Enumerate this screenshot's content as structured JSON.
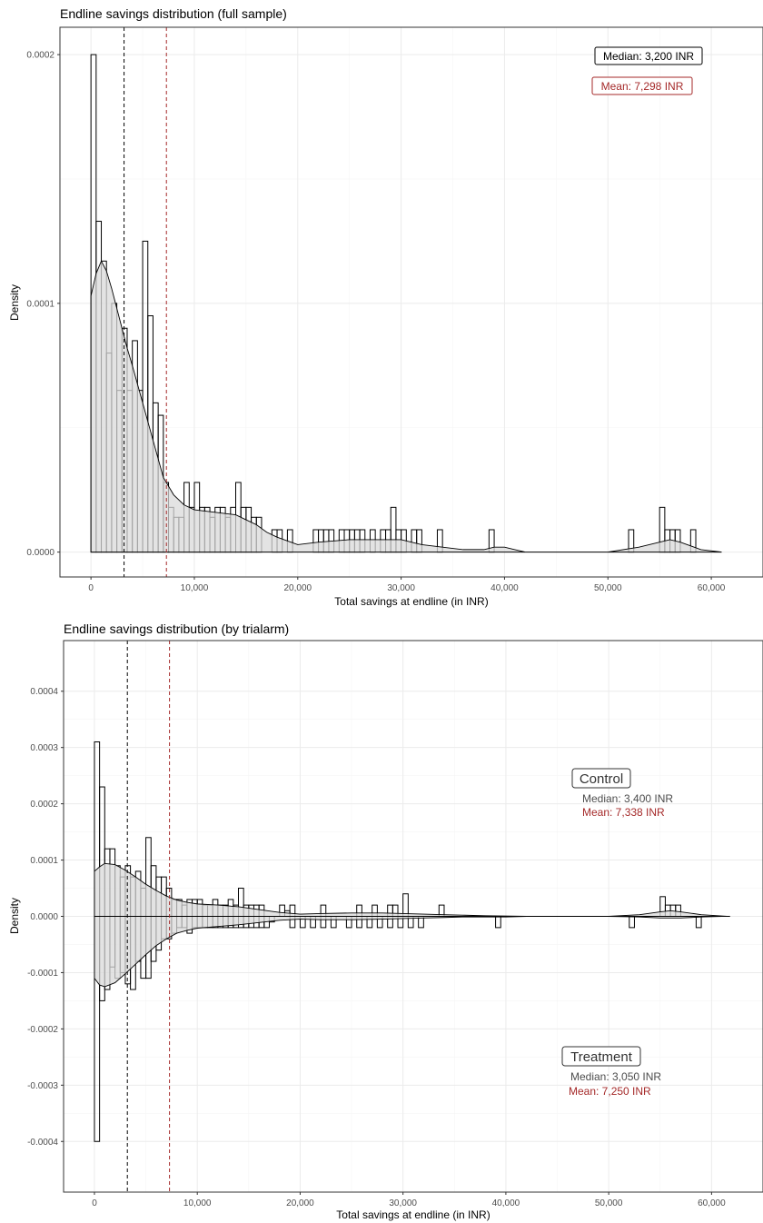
{
  "colors": {
    "median": "#000000",
    "mean": "#a52a2a",
    "annotation_text": "#4d4d4d",
    "fill": "#d9d9d9"
  },
  "chart_data": [
    {
      "type": "bar",
      "title": "Endline savings distribution (full sample)",
      "xlabel": "Total savings at endline (in INR)",
      "ylabel": "Density",
      "xlim": [
        -3000,
        65000
      ],
      "ylim": [
        -1e-05,
        0.000211
      ],
      "x_ticks": [
        0,
        10000,
        20000,
        30000,
        40000,
        50000,
        60000
      ],
      "x_tick_labels": [
        "0",
        "10,000",
        "20,000",
        "30,000",
        "40,000",
        "50,000",
        "60,000"
      ],
      "y_ticks": [
        0,
        0.0001,
        0.0002
      ],
      "y_tick_labels": [
        "0.0000",
        "0.0001",
        "0.0002"
      ],
      "bin_width": 500,
      "bars": {
        "x_start": [
          0,
          500,
          1000,
          1500,
          2000,
          2500,
          3000,
          3500,
          4000,
          4500,
          5000,
          5500,
          6000,
          6500,
          7000,
          7500,
          8000,
          8500,
          9000,
          9500,
          10000,
          10500,
          11000,
          11500,
          12000,
          12500,
          13000,
          13500,
          14000,
          14500,
          15000,
          15500,
          16000,
          17500,
          18000,
          19000,
          21500,
          22000,
          22500,
          23000,
          24000,
          24500,
          25000,
          25500,
          26000,
          27000,
          28000,
          28500,
          29000,
          29500,
          30000,
          31000,
          31500,
          33500,
          38500,
          52000,
          55000,
          55500,
          56000,
          56500,
          58000
        ],
        "density": [
          0.0002,
          0.000133,
          0.000117,
          8e-05,
          0.0001,
          6.5e-05,
          9e-05,
          6.5e-05,
          8.5e-05,
          6.5e-05,
          0.000125,
          9.5e-05,
          6e-05,
          5.5e-05,
          2.8e-05,
          1.8e-05,
          1.4e-05,
          1.4e-05,
          2.8e-05,
          1.8e-05,
          2.8e-05,
          1.8e-05,
          1.8e-05,
          1.4e-05,
          1.8e-05,
          1.8e-05,
          1.4e-05,
          1.8e-05,
          2.8e-05,
          1.8e-05,
          1.8e-05,
          1.4e-05,
          1.4e-05,
          9e-06,
          9e-06,
          9e-06,
          9e-06,
          9e-06,
          9e-06,
          9e-06,
          9e-06,
          9e-06,
          9e-06,
          9e-06,
          9e-06,
          9e-06,
          9e-06,
          9e-06,
          1.8e-05,
          9e-06,
          9e-06,
          9e-06,
          9e-06,
          9e-06,
          9e-06,
          9e-06,
          1.8e-05,
          9e-06,
          9e-06,
          9e-06,
          9e-06
        ]
      },
      "density_curve": {
        "x": [
          0,
          500,
          1000,
          1500,
          2000,
          2500,
          3000,
          3500,
          4000,
          5000,
          6000,
          7000,
          8000,
          9000,
          10000,
          12000,
          14000,
          15000,
          16000,
          17000,
          18000,
          20000,
          22000,
          25000,
          28000,
          30000,
          32000,
          34000,
          36000,
          38000,
          39000,
          40000,
          41000,
          42000,
          46000,
          50000,
          53000,
          55000,
          56000,
          57000,
          59000,
          61000
        ],
        "y": [
          0.000103,
          0.000112,
          0.000117,
          0.000113,
          0.000106,
          9.8e-05,
          9e-05,
          8.2e-05,
          7.5e-05,
          6e-05,
          4.5e-05,
          3e-05,
          2.3e-05,
          1.9e-05,
          1.7e-05,
          1.6e-05,
          1.5e-05,
          1.3e-05,
          1.1e-05,
          8e-06,
          6e-06,
          3e-06,
          4e-06,
          5e-06,
          5e-06,
          5e-06,
          3e-06,
          2e-06,
          1e-06,
          1e-06,
          2e-06,
          2e-06,
          1e-06,
          0,
          0,
          0,
          2e-06,
          4e-06,
          5e-06,
          4e-06,
          1e-06,
          0
        ]
      },
      "median": 3200,
      "mean": 7298,
      "annotations": {
        "median_label": "Median: 3,200 INR",
        "mean_label": "Mean: 7,298 INR"
      }
    },
    {
      "type": "bar",
      "title": "Endline savings distribution (by trialarm)",
      "xlabel": "Total savings at endline (in INR)",
      "ylabel": "Density",
      "xlim": [
        -3000,
        65000
      ],
      "ylim": [
        -0.00049,
        0.00049
      ],
      "x_ticks": [
        0,
        10000,
        20000,
        30000,
        40000,
        50000,
        60000
      ],
      "x_tick_labels": [
        "0",
        "10,000",
        "20,000",
        "30,000",
        "40,000",
        "50,000",
        "60,000"
      ],
      "y_ticks": [
        -0.0004,
        -0.0003,
        -0.0002,
        -0.0001,
        0,
        0.0001,
        0.0002,
        0.0003,
        0.0004
      ],
      "y_tick_labels": [
        "-0.0004",
        "-0.0003",
        "-0.0002",
        "-0.0001",
        "0.0000",
        "0.0001",
        "0.0002",
        "0.0003",
        "0.0004"
      ],
      "bin_width": 500,
      "series": [
        {
          "name": "Control",
          "sign": 1,
          "x_start": [
            0,
            500,
            1000,
            1500,
            2000,
            2500,
            3000,
            3500,
            4000,
            4500,
            5000,
            5500,
            6000,
            6500,
            7000,
            7500,
            8000,
            8500,
            9000,
            9500,
            10000,
            10500,
            11000,
            11500,
            12000,
            12500,
            13000,
            13500,
            14000,
            14500,
            15000,
            15500,
            16000,
            18000,
            18500,
            19000,
            22000,
            25500,
            27000,
            28500,
            29000,
            30000,
            33500,
            55000,
            55500,
            56000,
            56500
          ],
          "density": [
            0.00031,
            0.00023,
            0.00012,
            0.00012,
            9e-05,
            7e-05,
            9e-05,
            7e-05,
            8e-05,
            5e-05,
            0.00014,
            9e-05,
            7e-05,
            7e-05,
            5e-05,
            3e-05,
            3e-05,
            2e-05,
            3e-05,
            3e-05,
            3e-05,
            2e-05,
            2e-05,
            3e-05,
            2e-05,
            2e-05,
            3e-05,
            2e-05,
            5e-05,
            2e-05,
            2e-05,
            2e-05,
            2e-05,
            2e-05,
            1e-05,
            2e-05,
            2e-05,
            2e-05,
            2e-05,
            2e-05,
            2e-05,
            4e-05,
            2e-05,
            3.5e-05,
            2e-05,
            2e-05,
            2e-05
          ]
        },
        {
          "name": "Treatment",
          "sign": -1,
          "x_start": [
            0,
            500,
            1000,
            1500,
            2000,
            2500,
            3000,
            3500,
            4000,
            4500,
            5000,
            5500,
            6000,
            6500,
            7000,
            7500,
            8000,
            8500,
            9000,
            9500,
            10000,
            10500,
            11000,
            11500,
            12000,
            12500,
            13000,
            13500,
            14000,
            14500,
            15000,
            15500,
            16000,
            16500,
            17000,
            19000,
            20000,
            21000,
            22000,
            23000,
            24500,
            25500,
            26500,
            27500,
            28500,
            29500,
            30500,
            31500,
            39000,
            52000,
            58500
          ],
          "density": [
            0.0004,
            0.00015,
            0.00013,
            9e-05,
            0.00011,
            0.0001,
            0.00012,
            0.00013,
            8e-05,
            0.00011,
            0.00011,
            8e-05,
            6e-05,
            4e-05,
            4e-05,
            3e-05,
            2e-05,
            2e-05,
            3e-05,
            2e-05,
            2e-05,
            2e-05,
            2e-05,
            2e-05,
            2e-05,
            2e-05,
            2e-05,
            2e-05,
            2e-05,
            2e-05,
            2e-05,
            2e-05,
            2e-05,
            2e-05,
            1e-05,
            2e-05,
            2e-05,
            2e-05,
            2e-05,
            2e-05,
            2e-05,
            2e-05,
            2e-05,
            2e-05,
            2e-05,
            2e-05,
            2e-05,
            2e-05,
            2e-05,
            2e-05,
            2e-05
          ]
        }
      ],
      "density_curves": [
        {
          "name": "Control",
          "x": [
            0,
            500,
            1000,
            2000,
            3000,
            4000,
            5000,
            6000,
            7000,
            8000,
            9000,
            10000,
            12000,
            14000,
            16000,
            18000,
            20000,
            22000,
            25000,
            28000,
            30000,
            32000,
            34000,
            36000,
            38000,
            42000,
            50000,
            53000,
            55000,
            56000,
            57000,
            59000,
            61500
          ],
          "y": [
            8e-05,
            8.8e-05,
            9.4e-05,
            9.2e-05,
            8.2e-05,
            7e-05,
            5.7e-05,
            4.6e-05,
            3.6e-05,
            2.9e-05,
            2.5e-05,
            2.2e-05,
            2e-05,
            1.7e-05,
            1.2e-05,
            7e-06,
            4e-06,
            5e-06,
            6e-06,
            6e-06,
            5e-06,
            4e-06,
            3e-06,
            2e-06,
            1e-06,
            0,
            0,
            3e-06,
            8e-06,
            1e-05,
            8e-06,
            3e-06,
            0
          ]
        },
        {
          "name": "Treatment",
          "x": [
            0,
            500,
            1000,
            2000,
            3000,
            4000,
            5000,
            6000,
            7000,
            8000,
            9000,
            10000,
            12000,
            14000,
            16000,
            18000,
            20000,
            22000,
            25000,
            28000,
            30000,
            32000,
            34000,
            36000,
            38000,
            40000,
            42000,
            50000,
            53000,
            55000,
            57000,
            59000,
            61000
          ],
          "y": [
            0.00011,
            0.000122,
            0.000125,
            0.000118,
            0.000102,
            8.5e-05,
            6.8e-05,
            5.2e-05,
            4e-05,
            3e-05,
            2.5e-05,
            2.1e-05,
            1.8e-05,
            1.5e-05,
            1.1e-05,
            7e-06,
            5e-06,
            6e-06,
            6e-06,
            5e-06,
            4e-06,
            3e-06,
            2e-06,
            1e-06,
            1e-06,
            1e-06,
            0,
            0,
            1e-06,
            3e-06,
            3e-06,
            1e-06,
            0
          ]
        }
      ],
      "median": 3200,
      "mean": 7298,
      "annotations": {
        "control_label": "Control",
        "control_median": "Median: 3,400  INR",
        "control_mean": "Mean: 7,338 INR",
        "treatment_label": "Treatment",
        "treatment_median": "Median: 3,050 INR",
        "treatment_mean": "Mean:  7,250 INR"
      }
    }
  ]
}
